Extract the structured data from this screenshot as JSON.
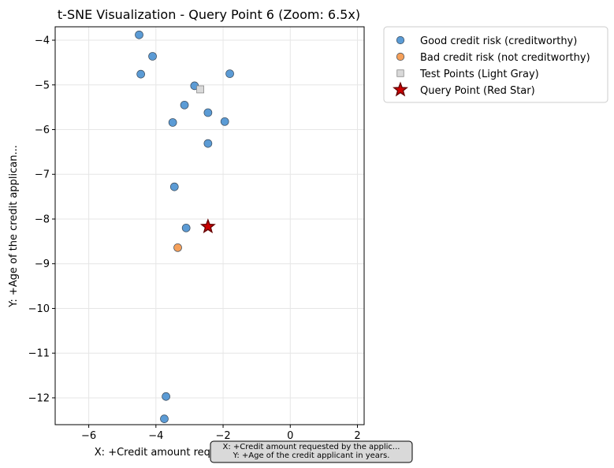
{
  "chart_data": {
    "type": "scatter",
    "title": "t-SNE Visualization - Query Point 6 (Zoom: 6.5x)",
    "xlabel": "X: +Credit amount requested by the applic...",
    "ylabel": "Y: +Age of the credit applican...",
    "xlim": [
      -7.0,
      2.2
    ],
    "ylim": [
      -12.6,
      -3.7
    ],
    "xticks": [
      -6,
      -4,
      -2,
      0,
      2
    ],
    "yticks": [
      -4,
      -5,
      -6,
      -7,
      -8,
      -9,
      -10,
      -11,
      -12
    ],
    "grid": true,
    "legend_position": "outside-top-right",
    "series": [
      {
        "name": "Good credit risk (creditworthy)",
        "marker": "circle",
        "color": "#5b9bd5",
        "points": [
          {
            "x": -4.5,
            "y": -3.88
          },
          {
            "x": -4.1,
            "y": -4.36
          },
          {
            "x": -4.45,
            "y": -4.76
          },
          {
            "x": -1.8,
            "y": -4.75
          },
          {
            "x": -2.85,
            "y": -5.02
          },
          {
            "x": -3.15,
            "y": -5.45
          },
          {
            "x": -2.45,
            "y": -5.62
          },
          {
            "x": -3.5,
            "y": -5.84
          },
          {
            "x": -1.95,
            "y": -5.82
          },
          {
            "x": -2.45,
            "y": -6.31
          },
          {
            "x": -3.45,
            "y": -7.28
          },
          {
            "x": -3.1,
            "y": -8.2
          },
          {
            "x": -3.7,
            "y": -11.97
          },
          {
            "x": -3.75,
            "y": -12.47
          }
        ]
      },
      {
        "name": "Bad credit risk (not creditworthy)",
        "marker": "circle",
        "color": "#f5a05a",
        "points": [
          {
            "x": -3.35,
            "y": -8.64
          }
        ]
      },
      {
        "name": "Test Points (Light Gray)",
        "marker": "square",
        "color": "#d9d9d9",
        "points": [
          {
            "x": -2.68,
            "y": -5.1
          }
        ]
      },
      {
        "name": "Query Point (Red Star)",
        "marker": "star",
        "color": "#cc0000",
        "points": [
          {
            "x": -2.45,
            "y": -8.17
          }
        ]
      }
    ],
    "annotation": {
      "line1": "X: +Credit amount requested by the applic...",
      "line2": "Y: +Age of the credit applicant in years."
    }
  }
}
